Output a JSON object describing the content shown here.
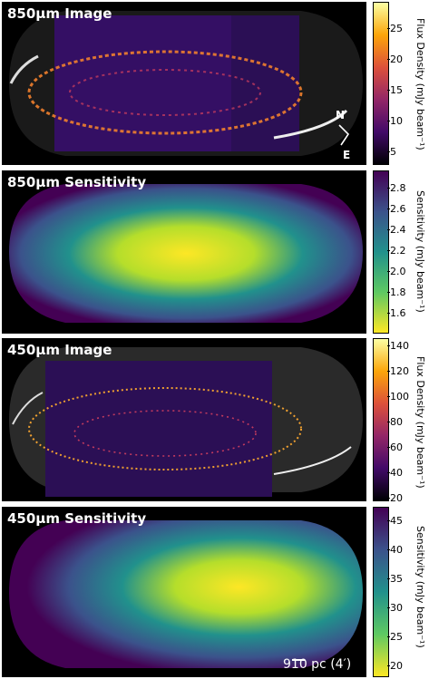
{
  "panels": [
    {
      "title": "850µm Image",
      "kind": "flux-inferno",
      "colorbar": {
        "label": "Flux Density (mJy beam⁻¹)",
        "ticks": [
          "25",
          "20",
          "15",
          "10",
          "5"
        ],
        "colors": [
          "#fcffa4",
          "#fca50a",
          "#dd513a",
          "#932667",
          "#420a68",
          "#000004"
        ]
      }
    },
    {
      "title": "850µm Sensitivity",
      "kind": "sens-viridis",
      "colorbar": {
        "label": "Sensitivity (mJy beam⁻¹)",
        "ticks": [
          "2.8",
          "2.6",
          "2.4",
          "2.2",
          "2.0",
          "1.8",
          "1.6"
        ],
        "colors": [
          "#440154",
          "#3b528b",
          "#21918c",
          "#5ec962",
          "#fde725"
        ]
      }
    },
    {
      "title": "450µm Image",
      "kind": "flux-inferno",
      "colorbar": {
        "label": "Flux Density (mJy beam⁻¹)",
        "ticks": [
          "140",
          "120",
          "100",
          "80",
          "60",
          "40",
          "20"
        ],
        "colors": [
          "#fcffa4",
          "#fca50a",
          "#dd513a",
          "#932667",
          "#420a68",
          "#000004"
        ]
      }
    },
    {
      "title": "450µm Sensitivity",
      "kind": "sens-viridis",
      "colorbar": {
        "label": "Sensitivity (mJy beam⁻¹)",
        "ticks": [
          "45",
          "40",
          "35",
          "30",
          "25",
          "20"
        ],
        "colors": [
          "#440154",
          "#3b528b",
          "#21918c",
          "#5ec962",
          "#fde725"
        ]
      }
    }
  ],
  "compass": {
    "north": "N",
    "east": "E"
  },
  "scale_bar": {
    "label": "910 pc (4′)"
  }
}
